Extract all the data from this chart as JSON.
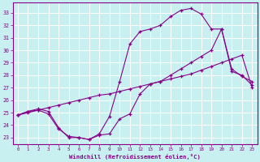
{
  "xlabel": "Windchill (Refroidissement éolien,°C)",
  "bg_color": "#c8f0f0",
  "line_color": "#880088",
  "grid_color": "#ffffff",
  "xlim": [
    -0.5,
    23.5
  ],
  "ylim": [
    22.5,
    33.8
  ],
  "yticks": [
    23,
    24,
    25,
    26,
    27,
    28,
    29,
    30,
    31,
    32,
    33
  ],
  "xticks": [
    0,
    1,
    2,
    3,
    4,
    5,
    6,
    7,
    8,
    9,
    10,
    11,
    12,
    13,
    14,
    15,
    16,
    17,
    18,
    19,
    20,
    21,
    22,
    23
  ],
  "line1_x": [
    0,
    1,
    2,
    3,
    4,
    5,
    6,
    7,
    8,
    9,
    10,
    11,
    12,
    13,
    14,
    15,
    16,
    17,
    18,
    19,
    20,
    21,
    22,
    23
  ],
  "line1_y": [
    24.8,
    25.1,
    25.2,
    24.9,
    23.7,
    23.1,
    23.0,
    22.85,
    23.2,
    23.3,
    24.5,
    24.9,
    26.5,
    27.3,
    27.5,
    28.0,
    28.5,
    29.0,
    29.5,
    30.0,
    31.7,
    28.3,
    28.0,
    27.2
  ],
  "line2_x": [
    0,
    1,
    2,
    3,
    4,
    5,
    6,
    7,
    8,
    9,
    10,
    11,
    12,
    13,
    14,
    15,
    16,
    17,
    18,
    19,
    20,
    21,
    22,
    23
  ],
  "line2_y": [
    24.8,
    25.0,
    25.2,
    25.4,
    25.6,
    25.8,
    26.0,
    26.2,
    26.4,
    26.5,
    26.7,
    26.9,
    27.1,
    27.3,
    27.5,
    27.7,
    27.9,
    28.1,
    28.4,
    28.7,
    29.0,
    29.3,
    29.6,
    27.0
  ],
  "line3_x": [
    0,
    1,
    2,
    3,
    4,
    5,
    6,
    7,
    8,
    9,
    10,
    11,
    12,
    13,
    14,
    15,
    16,
    17,
    18,
    19,
    20,
    21,
    22,
    23
  ],
  "line3_y": [
    24.8,
    25.1,
    25.3,
    25.1,
    23.8,
    23.0,
    23.0,
    22.85,
    23.3,
    24.7,
    27.5,
    30.5,
    31.5,
    31.7,
    32.0,
    32.7,
    33.2,
    33.35,
    32.9,
    31.7,
    31.7,
    28.5,
    27.9,
    27.5
  ]
}
